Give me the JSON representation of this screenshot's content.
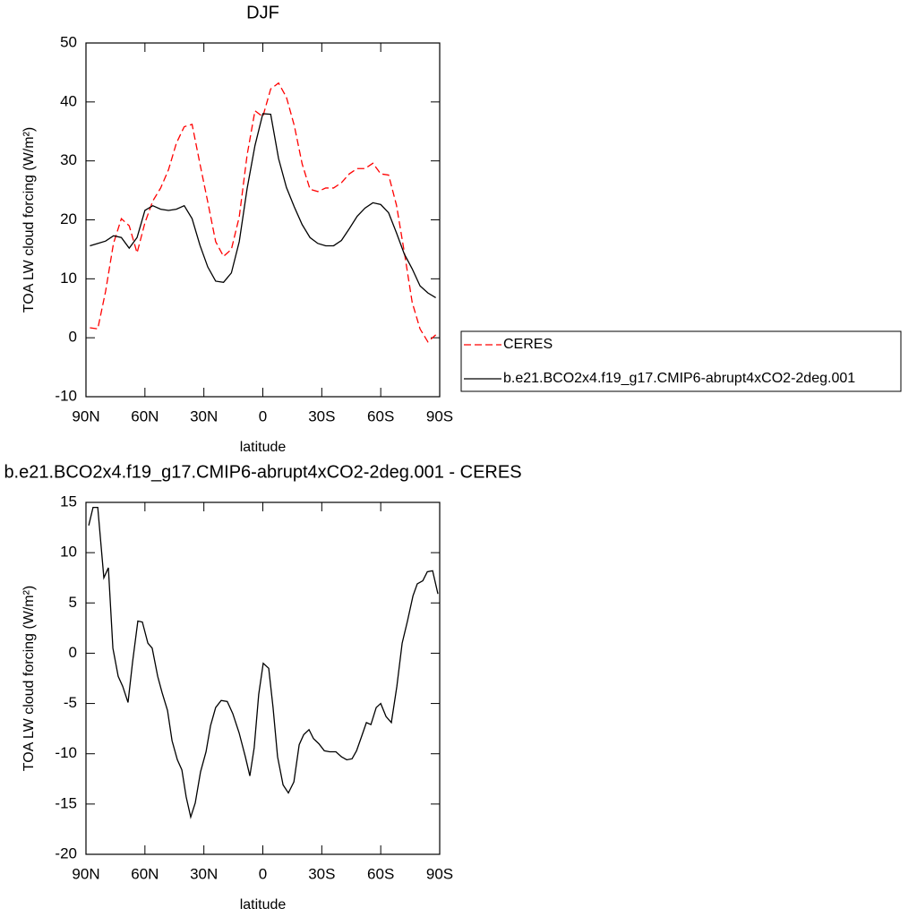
{
  "chart_data": [
    {
      "type": "line",
      "title": "DJF",
      "xlabel": "latitude",
      "ylabel": "TOA LW cloud forcing (W/m²)",
      "x": [
        88,
        84,
        80,
        76,
        72,
        68,
        64,
        60,
        56,
        52,
        48,
        44,
        40,
        36,
        32,
        28,
        24,
        20,
        16,
        12,
        8,
        4,
        0,
        -4,
        -8,
        -12,
        -16,
        -20,
        -24,
        -28,
        -32,
        -36,
        -40,
        -44,
        -48,
        -52,
        -56,
        -60,
        -64,
        -68,
        -72,
        -76,
        -80,
        -84,
        -88
      ],
      "series": [
        {
          "name": "CERES",
          "color": "#ff0000",
          "dashed": true,
          "values": [
            1.7,
            1.5,
            7.9,
            16,
            20.2,
            19,
            14.4,
            19.5,
            23.2,
            25.4,
            28.5,
            33,
            35.8,
            36.2,
            29.5,
            23,
            16.3,
            13.8,
            15,
            20.5,
            31,
            38.5,
            37.5,
            42.2,
            43.2,
            40.8,
            36,
            29.5,
            25.2,
            24.8,
            25.4,
            25.4,
            26.3,
            27.8,
            28.7,
            28.7,
            29.6,
            27.8,
            27.6,
            22.5,
            14.5,
            6,
            1.5,
            -0.7,
            0.5
          ]
        },
        {
          "name": "b.e21.BCO2x4.f19_g17.CMIP6-abrupt4xCO2-2deg.001",
          "color": "#000000",
          "dashed": false,
          "values": [
            15.6,
            16,
            16.4,
            17.3,
            17,
            15.2,
            17,
            21.6,
            22.4,
            21.8,
            21.6,
            21.8,
            22.4,
            20.2,
            15.7,
            12,
            9.6,
            9.4,
            11,
            16.3,
            25.3,
            32.6,
            38,
            37.9,
            30.4,
            25.5,
            22.2,
            19.2,
            17,
            16,
            15.6,
            15.6,
            16.5,
            18.5,
            20.6,
            22,
            22.9,
            22.6,
            21.2,
            17.8,
            14.2,
            11.7,
            8.8,
            7.6,
            6.8
          ]
        }
      ],
      "xlim": [
        90,
        -90
      ],
      "xticks": [
        {
          "value": 90,
          "label": "90N"
        },
        {
          "value": 60,
          "label": "60N"
        },
        {
          "value": 30,
          "label": "30N"
        },
        0,
        {
          "value": -30,
          "label": "30S"
        },
        {
          "value": -60,
          "label": "60S"
        },
        {
          "value": -90,
          "label": "90S"
        }
      ],
      "ylim": [
        -10,
        50
      ],
      "yticks": [
        -10,
        0,
        10,
        20,
        30,
        40,
        50
      ],
      "legend": "right"
    },
    {
      "type": "line",
      "title": "b.e21.BCO2x4.f19_g17.CMIP6-abrupt4xCO2-2deg.001 - CERES",
      "xlabel": "latitude",
      "ylabel": "TOA LW cloud forcing (W/m²)",
      "x": [
        88.6,
        86.4,
        84,
        80.9,
        78.6,
        76.3,
        73.6,
        71.3,
        68.6,
        66.3,
        63.6,
        61.3,
        58.5,
        56.3,
        53.5,
        51.3,
        48.5,
        46.2,
        43.5,
        41.2,
        39,
        36.7,
        34.4,
        31.7,
        28.9,
        26.6,
        24,
        21.2,
        18.1,
        15.3,
        12.1,
        8.9,
        6.6,
        4.4,
        2.1,
        -0.2,
        -3,
        -5.2,
        -7.5,
        -10.3,
        -13,
        -15.8,
        -18.5,
        -20.8,
        -23.5,
        -25.8,
        -28.5,
        -31.3,
        -34,
        -37.2,
        -40,
        -42.7,
        -45.4,
        -47.7,
        -50.4,
        -52.7,
        -55,
        -57.7,
        -60,
        -62.7,
        -65.4,
        -68.2,
        -70.9,
        -73.6,
        -76.4,
        -78.6,
        -81.4,
        -83.7,
        -86.4,
        -89.1
      ],
      "values": [
        12.7,
        14.5,
        14.5,
        7.5,
        8.5,
        0.5,
        -2.3,
        -3.3,
        -4.9,
        -0.9,
        3.2,
        3.1,
        1,
        0.5,
        -2.3,
        -3.9,
        -5.7,
        -8.7,
        -10.6,
        -11.6,
        -14.3,
        -16.3,
        -14.9,
        -11.8,
        -9.8,
        -7.2,
        -5.4,
        -4.7,
        -4.8,
        -6,
        -7.9,
        -10.3,
        -12.2,
        -9.4,
        -4.1,
        -1,
        -1.5,
        -5.4,
        -10.3,
        -13.1,
        -13.9,
        -12.8,
        -9.1,
        -8.1,
        -7.6,
        -8.5,
        -9,
        -9.7,
        -9.8,
        -9.8,
        -10.3,
        -10.6,
        -10.5,
        -9.7,
        -8.2,
        -6.9,
        -7.1,
        -5.4,
        -5,
        -6.3,
        -6.9,
        -3.3,
        1,
        3.2,
        5.7,
        6.9,
        7.2,
        8.1,
        8.2,
        5.9
      ],
      "color": "#000000",
      "xlim": [
        90,
        -90
      ],
      "xticks": [
        {
          "value": 90,
          "label": "90N"
        },
        {
          "value": 60,
          "label": "60N"
        },
        {
          "value": 30,
          "label": "30N"
        },
        0,
        {
          "value": -30,
          "label": "30S"
        },
        {
          "value": -60,
          "label": "60S"
        },
        {
          "value": -90,
          "label": "90S"
        }
      ],
      "ylim": [
        -20,
        15
      ],
      "yticks": [
        -20,
        -15,
        -10,
        -5,
        0,
        5,
        10,
        15
      ]
    }
  ]
}
